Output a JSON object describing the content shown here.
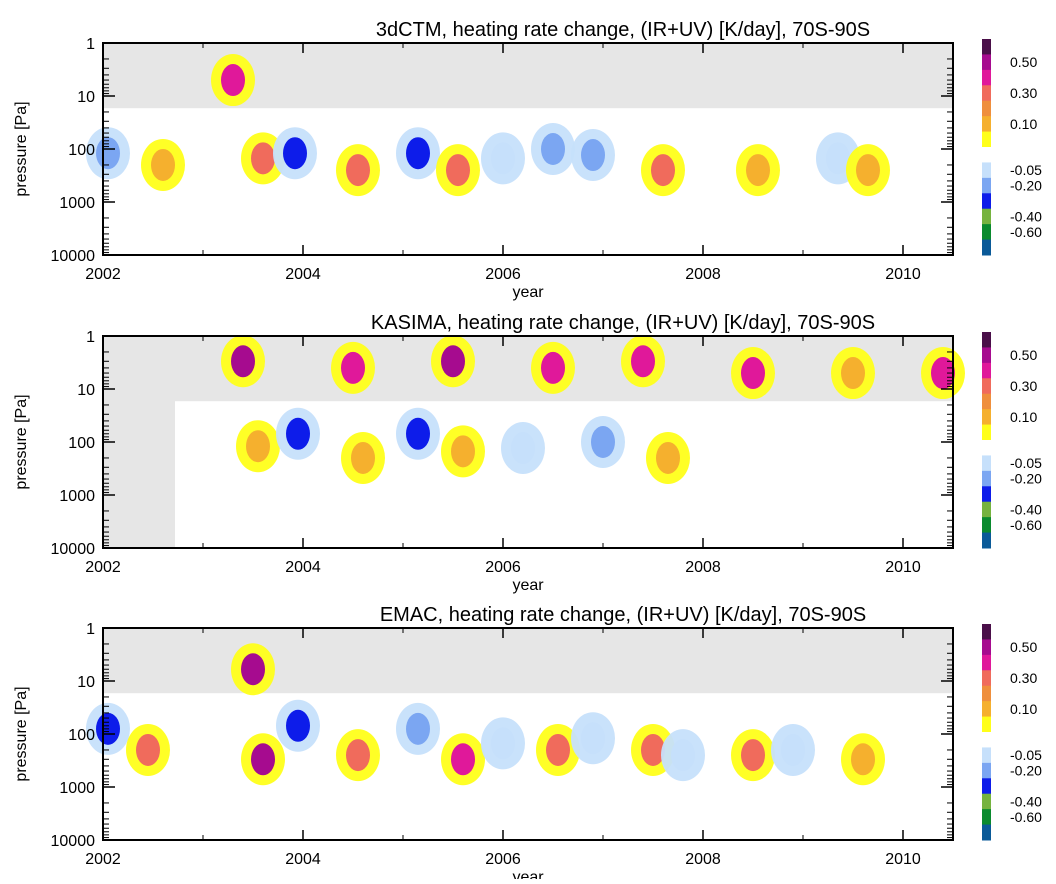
{
  "chart_data": [
    {
      "type": "heatmap",
      "model": "3dCTM",
      "title": "3dCTM, heating rate change, (IR+UV) [K/day], 70S-90S",
      "xlabel": "year",
      "ylabel": "pressure [Pa]",
      "x_ticks": [
        "2002",
        "2004",
        "2006",
        "2008",
        "2010"
      ],
      "y_ticks": [
        "1",
        "10",
        "100",
        "1000",
        "10000"
      ],
      "xlim": [
        2002.0,
        2010.5
      ],
      "ylim": [
        1,
        10000
      ],
      "y_scale": "log",
      "y_inverted": true,
      "masked_regions": [
        {
          "pressure": [
            1,
            17
          ],
          "time": [
            2002.0,
            2010.5
          ]
        }
      ],
      "colorbar_labels": [
        "0.50",
        "0.30",
        "0.10",
        "-0.05",
        "-0.20",
        "-0.40",
        "-0.60"
      ],
      "colorbar_colors": [
        "#4a0f49",
        "#a60b8f",
        "#e0189a",
        "#f06b5c",
        "#ef8f3d",
        "#f5b02e",
        "#ffff1a",
        "#ffffff",
        "#c6e0fb",
        "#7ba6f2",
        "#0d1cea",
        "#76b33f",
        "#0a8a2e",
        "#0a5a98"
      ],
      "blobs": [
        {
          "t": 2002.05,
          "p": 120,
          "value": -0.2
        },
        {
          "t": 2002.6,
          "p": 200,
          "value": 0.1
        },
        {
          "t": 2003.3,
          "p": 5,
          "value": 0.3
        },
        {
          "t": 2003.6,
          "p": 150,
          "value": 0.2
        },
        {
          "t": 2003.92,
          "p": 120,
          "value": -0.4
        },
        {
          "t": 2004.55,
          "p": 250,
          "value": 0.2
        },
        {
          "t": 2005.15,
          "p": 120,
          "value": -0.3
        },
        {
          "t": 2005.55,
          "p": 250,
          "value": 0.2
        },
        {
          "t": 2006.0,
          "p": 150,
          "value": -0.05
        },
        {
          "t": 2006.5,
          "p": 100,
          "value": -0.2
        },
        {
          "t": 2006.9,
          "p": 130,
          "value": -0.2
        },
        {
          "t": 2007.6,
          "p": 250,
          "value": 0.2
        },
        {
          "t": 2008.55,
          "p": 250,
          "value": 0.1
        },
        {
          "t": 2009.35,
          "p": 150,
          "value": -0.05
        },
        {
          "t": 2009.65,
          "p": 250,
          "value": 0.1
        }
      ]
    },
    {
      "type": "heatmap",
      "model": "KASIMA",
      "title": "KASIMA, heating rate change, (IR+UV) [K/day], 70S-90S",
      "xlabel": "year",
      "ylabel": "pressure [Pa]",
      "x_ticks": [
        "2002",
        "2004",
        "2006",
        "2008",
        "2010"
      ],
      "y_ticks": [
        "1",
        "10",
        "100",
        "1000",
        "10000"
      ],
      "xlim": [
        2002.0,
        2010.5
      ],
      "ylim": [
        1,
        10000
      ],
      "y_scale": "log",
      "y_inverted": true,
      "masked_regions": [
        {
          "pressure": [
            1,
            17
          ],
          "time": [
            2002.0,
            2010.5
          ]
        },
        {
          "pressure": [
            1,
            10000
          ],
          "time": [
            2002.0,
            2002.72
          ]
        }
      ],
      "colorbar_labels": [
        "0.50",
        "0.30",
        "0.10",
        "-0.05",
        "-0.20",
        "-0.40",
        "-0.60"
      ],
      "colorbar_colors": [
        "#4a0f49",
        "#a60b8f",
        "#e0189a",
        "#f06b5c",
        "#ef8f3d",
        "#f5b02e",
        "#ffff1a",
        "#ffffff",
        "#c6e0fb",
        "#7ba6f2",
        "#0d1cea",
        "#76b33f",
        "#0a8a2e",
        "#0a5a98"
      ],
      "blobs": [
        {
          "t": 2003.4,
          "p": 3,
          "value": 0.5
        },
        {
          "t": 2003.55,
          "p": 120,
          "value": 0.1
        },
        {
          "t": 2003.95,
          "p": 70,
          "value": -0.4
        },
        {
          "t": 2004.5,
          "p": 4,
          "value": 0.3
        },
        {
          "t": 2004.6,
          "p": 200,
          "value": 0.1
        },
        {
          "t": 2005.15,
          "p": 70,
          "value": -0.4
        },
        {
          "t": 2005.5,
          "p": 3,
          "value": 0.5
        },
        {
          "t": 2005.6,
          "p": 150,
          "value": 0.1
        },
        {
          "t": 2006.2,
          "p": 130,
          "value": -0.05
        },
        {
          "t": 2006.5,
          "p": 4,
          "value": 0.3
        },
        {
          "t": 2007.0,
          "p": 100,
          "value": -0.2
        },
        {
          "t": 2007.4,
          "p": 3,
          "value": 0.3
        },
        {
          "t": 2007.65,
          "p": 200,
          "value": 0.1
        },
        {
          "t": 2008.5,
          "p": 5,
          "value": 0.3
        },
        {
          "t": 2009.5,
          "p": 5,
          "value": 0.1
        },
        {
          "t": 2010.4,
          "p": 5,
          "value": 0.3
        }
      ]
    },
    {
      "type": "heatmap",
      "model": "EMAC",
      "title": "EMAC, heating rate change, (IR+UV) [K/day], 70S-90S",
      "xlabel": "year",
      "ylabel": "pressure [Pa]",
      "x_ticks": [
        "2002",
        "2004",
        "2006",
        "2008",
        "2010"
      ],
      "y_ticks": [
        "1",
        "10",
        "100",
        "1000",
        "10000"
      ],
      "xlim": [
        2002.0,
        2010.5
      ],
      "ylim": [
        1,
        10000
      ],
      "y_scale": "log",
      "y_inverted": true,
      "masked_regions": [
        {
          "pressure": [
            1,
            17
          ],
          "time": [
            2002.0,
            2010.5
          ]
        }
      ],
      "colorbar_labels": [
        "0.50",
        "0.30",
        "0.10",
        "-0.05",
        "-0.20",
        "-0.40",
        "-0.60"
      ],
      "colorbar_colors": [
        "#4a0f49",
        "#a60b8f",
        "#e0189a",
        "#f06b5c",
        "#ef8f3d",
        "#f5b02e",
        "#ffff1a",
        "#ffffff",
        "#c6e0fb",
        "#7ba6f2",
        "#0d1cea",
        "#76b33f",
        "#0a8a2e",
        "#0a5a98"
      ],
      "blobs": [
        {
          "t": 2002.05,
          "p": 80,
          "value": -0.3
        },
        {
          "t": 2002.45,
          "p": 200,
          "value": 0.2
        },
        {
          "t": 2003.5,
          "p": 6,
          "value": 0.5
        },
        {
          "t": 2003.6,
          "p": 300,
          "value": 0.5
        },
        {
          "t": 2003.95,
          "p": 70,
          "value": -0.4
        },
        {
          "t": 2004.55,
          "p": 250,
          "value": 0.2
        },
        {
          "t": 2005.15,
          "p": 80,
          "value": -0.2
        },
        {
          "t": 2005.6,
          "p": 300,
          "value": 0.3
        },
        {
          "t": 2006.0,
          "p": 150,
          "value": -0.05
        },
        {
          "t": 2006.55,
          "p": 200,
          "value": 0.2
        },
        {
          "t": 2006.9,
          "p": 120,
          "value": -0.05
        },
        {
          "t": 2007.5,
          "p": 200,
          "value": 0.2
        },
        {
          "t": 2007.8,
          "p": 250,
          "value": -0.05
        },
        {
          "t": 2008.5,
          "p": 250,
          "value": 0.2
        },
        {
          "t": 2008.9,
          "p": 200,
          "value": -0.05
        },
        {
          "t": 2009.6,
          "p": 300,
          "value": 0.1
        }
      ]
    }
  ]
}
